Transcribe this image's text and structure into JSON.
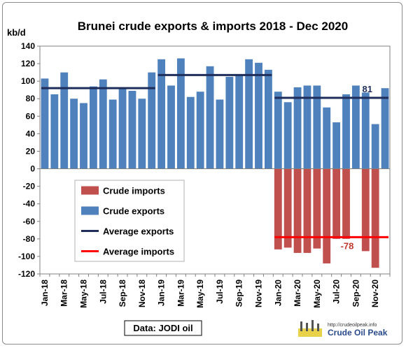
{
  "chart_data": {
    "type": "bar",
    "title": "Brunei crude exports & imports  2018 - Dec 2020",
    "ylabel": "kb/d",
    "ylim": [
      -120,
      140
    ],
    "y_ticks": [
      140,
      120,
      100,
      80,
      60,
      40,
      20,
      0,
      -20,
      -40,
      -60,
      -80,
      -100,
      -120
    ],
    "categories": [
      "Jan-18",
      "Feb-18",
      "Mar-18",
      "Apr-18",
      "May-18",
      "Jun-18",
      "Jul-18",
      "Aug-18",
      "Sep-18",
      "Oct-18",
      "Nov-18",
      "Dec-18",
      "Jan-19",
      "Feb-19",
      "Mar-19",
      "Apr-19",
      "May-19",
      "Jun-19",
      "Jul-19",
      "Aug-19",
      "Sep-19",
      "Oct-19",
      "Nov-19",
      "Dec-19",
      "Jan-20",
      "Feb-20",
      "Mar-20",
      "Apr-20",
      "May-20",
      "Jun-20",
      "Jul-20",
      "Aug-20",
      "Sep-20",
      "Oct-20",
      "Nov-20",
      "Dec-20"
    ],
    "x_tick_labels": [
      "Jan-18",
      "Mar-18",
      "May-18",
      "Jul-18",
      "Sep-18",
      "Nov-18",
      "Jan-19",
      "Mar-19",
      "May-19",
      "Jul-19",
      "Sep-19",
      "Nov-19",
      "Jan-20",
      "Mar-20",
      "May-20",
      "Jul-20",
      "Sep-20",
      "Nov-20"
    ],
    "series": [
      {
        "name": "Crude imports",
        "color": "#c0504d",
        "values": [
          0,
          0,
          0,
          0,
          0,
          0,
          0,
          0,
          0,
          0,
          0,
          0,
          0,
          0,
          0,
          0,
          0,
          0,
          0,
          0,
          0,
          0,
          0,
          0,
          -92,
          -90,
          -96,
          -96,
          -91,
          -108,
          -80,
          -80,
          0,
          -94,
          -113,
          0
        ]
      },
      {
        "name": "Crude exports",
        "color": "#4f81bd",
        "values": [
          103,
          85,
          110,
          80,
          75,
          94,
          102,
          79,
          93,
          89,
          80,
          110,
          125,
          95,
          126,
          82,
          88,
          117,
          79,
          105,
          107,
          125,
          121,
          113,
          88,
          76,
          93,
          95,
          95,
          70,
          53,
          85,
          95,
          87,
          51,
          92
        ]
      }
    ],
    "averages": [
      {
        "name": "Average exports",
        "color": "#1f2d5a",
        "segments": [
          {
            "from": "Jan-18",
            "to": "Dec-18",
            "value": 92
          },
          {
            "from": "Jan-19",
            "to": "Dec-19",
            "value": 107
          },
          {
            "from": "Jan-20",
            "to": "Dec-20",
            "value": 81
          }
        ]
      },
      {
        "name": "Average imports",
        "color": "#ff0000",
        "segments": [
          {
            "from": "Jan-20",
            "to": "Dec-20",
            "value": -78
          }
        ]
      }
    ],
    "annotations": [
      {
        "text": "81",
        "color": "#1f2d5a"
      },
      {
        "text": "-78",
        "color": "#c0392b"
      }
    ],
    "legend": [
      "Crude imports",
      "Crude exports",
      "Average exports",
      "Average imports"
    ],
    "legend_position": "lower-left",
    "grid": false
  },
  "source_label": "Data: JODI oil",
  "logo": {
    "url": "http://crudeoilpeak.info",
    "name": "Crude Oil Peak"
  }
}
